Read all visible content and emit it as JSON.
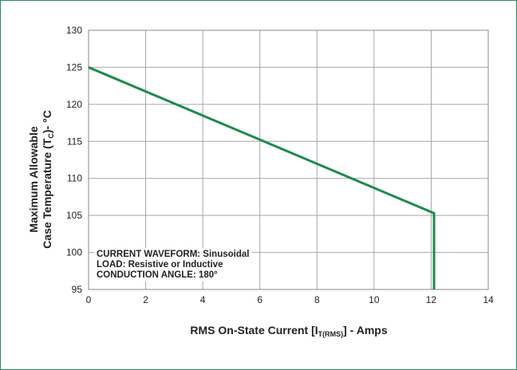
{
  "chart_data": {
    "type": "line",
    "title": "",
    "xlabel": {
      "prefix": "RMS On-State Current [I",
      "subscript": "T(RMS)",
      "suffix": "] - Amps"
    },
    "ylabel": {
      "line1": "Maximum Allowable",
      "line2_prefix": "Case Temperature (T",
      "line2_subscript": "C",
      "line2_suffix": ")- °C"
    },
    "xlim": [
      0,
      14
    ],
    "ylim": [
      95,
      130
    ],
    "xticks": [
      0,
      2,
      4,
      6,
      8,
      10,
      12,
      14
    ],
    "yticks": [
      95,
      100,
      105,
      110,
      115,
      120,
      125,
      130
    ],
    "grid": true,
    "series": [
      {
        "x": [
          0,
          12.1,
          12.1
        ],
        "y": [
          125,
          105.3,
          95
        ]
      }
    ],
    "annotation": [
      "CURRENT WAVEFORM: Sinusoidal",
      "LOAD: Resistive or Inductive",
      "CONDUCTION ANGLE: 180°"
    ],
    "colors": {
      "line": "#1f8a4c",
      "grid": "#a6a6a6",
      "frame": "#2a8a5e"
    }
  }
}
